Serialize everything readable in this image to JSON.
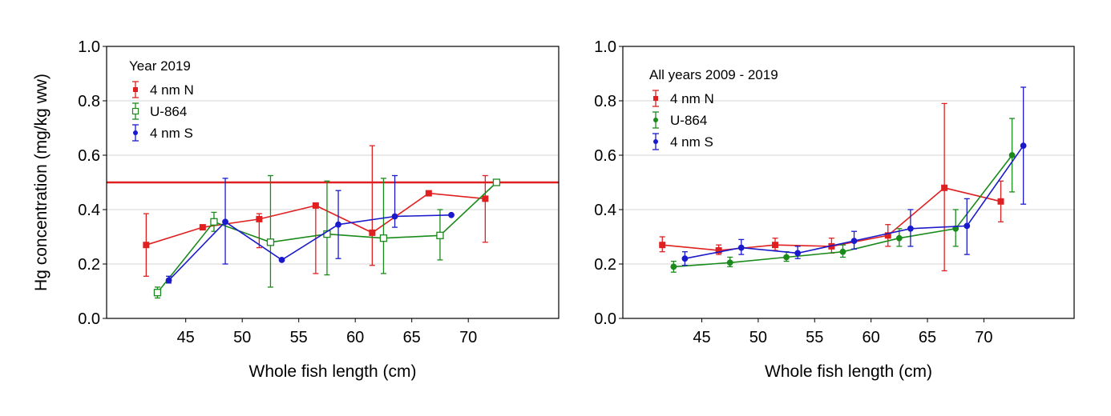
{
  "chart_data": [
    {
      "type": "line",
      "legend_title": "Year 2019",
      "xlabel": "Whole fish length (cm)",
      "ylabel": "Hg concentration (mg/kg ww)",
      "xlim": [
        38,
        78
      ],
      "ylim": [
        0,
        1.0
      ],
      "xticks": [
        "45",
        "50",
        "55",
        "60",
        "65",
        "70"
      ],
      "yticks": [
        "0.0",
        "0.2",
        "0.4",
        "0.6",
        "0.8",
        "1.0"
      ],
      "reference_line": {
        "y": 0.5,
        "color": "#e02020"
      },
      "grid": "horizontal",
      "legend_position": "top-left",
      "series": [
        {
          "name": "4 nm N",
          "color": "#e02020",
          "marker": "square",
          "x": [
            41.5,
            46.5,
            51.5,
            56.5,
            61.5,
            66.5,
            71.5
          ],
          "y": [
            0.27,
            0.335,
            0.365,
            0.415,
            0.315,
            0.46,
            0.44
          ],
          "err_low": [
            0.155,
            0.335,
            0.26,
            0.165,
            0.195,
            0.46,
            0.28
          ],
          "err_high": [
            0.385,
            0.335,
            0.385,
            0.415,
            0.635,
            0.46,
            0.525
          ]
        },
        {
          "name": "U-864",
          "color": "#1a8a1a",
          "marker": "open-square",
          "x": [
            42.5,
            47.5,
            52.5,
            57.5,
            62.5,
            67.5,
            72.5
          ],
          "y": [
            0.095,
            0.355,
            0.28,
            0.31,
            0.295,
            0.305,
            0.5
          ],
          "err_low": [
            0.075,
            0.32,
            0.115,
            0.16,
            0.165,
            0.215,
            0.5
          ],
          "err_high": [
            0.115,
            0.39,
            0.525,
            0.505,
            0.515,
            0.4,
            0.5
          ]
        },
        {
          "name": "4 nm S",
          "color": "#1a1acc",
          "marker": "circle",
          "x": [
            43.5,
            48.5,
            53.5,
            58.5,
            63.5,
            68.5
          ],
          "y": [
            0.14,
            0.355,
            0.215,
            0.345,
            0.375,
            0.38
          ],
          "err_low": [
            0.13,
            0.2,
            0.215,
            0.22,
            0.335,
            0.38
          ],
          "err_high": [
            0.155,
            0.515,
            0.215,
            0.47,
            0.525,
            0.38
          ]
        }
      ]
    },
    {
      "type": "line",
      "legend_title": "All years 2009 - 2019",
      "xlabel": "Whole fish length (cm)",
      "ylabel": "",
      "xlim": [
        38,
        78
      ],
      "ylim": [
        0,
        1.0
      ],
      "xticks": [
        "45",
        "50",
        "55",
        "60",
        "65",
        "70"
      ],
      "yticks": [
        "0.0",
        "0.2",
        "0.4",
        "0.6",
        "0.8",
        "1.0"
      ],
      "grid": "horizontal",
      "legend_position": "top-left",
      "series": [
        {
          "name": "4 nm N",
          "color": "#e02020",
          "marker": "square",
          "x": [
            41.5,
            46.5,
            51.5,
            56.5,
            61.5,
            66.5,
            71.5
          ],
          "y": [
            0.27,
            0.25,
            0.27,
            0.265,
            0.305,
            0.48,
            0.43
          ],
          "err_low": [
            0.245,
            0.235,
            0.25,
            0.24,
            0.265,
            0.175,
            0.355
          ],
          "err_high": [
            0.3,
            0.27,
            0.295,
            0.295,
            0.345,
            0.79,
            0.505
          ]
        },
        {
          "name": "U-864",
          "color": "#1a8a1a",
          "marker": "circle",
          "x": [
            42.5,
            47.5,
            52.5,
            57.5,
            62.5,
            67.5,
            72.5
          ],
          "y": [
            0.19,
            0.205,
            0.225,
            0.245,
            0.295,
            0.33,
            0.6
          ],
          "err_low": [
            0.17,
            0.19,
            0.21,
            0.225,
            0.265,
            0.265,
            0.465
          ],
          "err_high": [
            0.21,
            0.225,
            0.245,
            0.27,
            0.33,
            0.4,
            0.735
          ]
        },
        {
          "name": "4 nm S",
          "color": "#1a1acc",
          "marker": "circle",
          "x": [
            43.5,
            48.5,
            53.5,
            58.5,
            63.5,
            68.5,
            73.5
          ],
          "y": [
            0.22,
            0.26,
            0.24,
            0.285,
            0.33,
            0.34,
            0.635
          ],
          "err_low": [
            0.195,
            0.235,
            0.22,
            0.255,
            0.265,
            0.235,
            0.42
          ],
          "err_high": [
            0.245,
            0.29,
            0.265,
            0.32,
            0.4,
            0.44,
            0.85
          ]
        }
      ]
    }
  ]
}
